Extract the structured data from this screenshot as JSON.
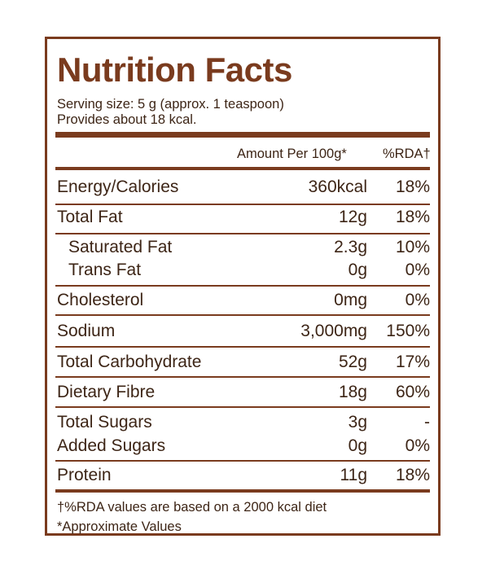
{
  "title": "Nutrition Facts",
  "serving_line_1": "Serving size: 5 g (approx. 1 teaspoon)",
  "serving_line_2": "Provides about 18 kcal.",
  "header": {
    "amount": "Amount Per 100g*",
    "rda": "%RDA†"
  },
  "rows": [
    {
      "name": "Energy/Calories",
      "amount": "360kcal",
      "rda": "18%"
    },
    {
      "name": "Total Fat",
      "amount": "12g",
      "rda": "18%"
    },
    {
      "name": "Saturated Fat",
      "amount": "2.3g",
      "rda": "10%"
    },
    {
      "name": "Trans Fat",
      "amount": "0g",
      "rda": "0%"
    },
    {
      "name": "Cholesterol",
      "amount": "0mg",
      "rda": "0%"
    },
    {
      "name": "Sodium",
      "amount": "3,000mg",
      "rda": "150%"
    },
    {
      "name": "Total Carbohydrate",
      "amount": "52g",
      "rda": "17%"
    },
    {
      "name": "Dietary Fibre",
      "amount": "18g",
      "rda": "60%"
    },
    {
      "name": "Total Sugars",
      "amount": "3g",
      "rda": "-"
    },
    {
      "name": "Added Sugars",
      "amount": "0g",
      "rda": "0%"
    },
    {
      "name": "Protein",
      "amount": "11g",
      "rda": "18%"
    }
  ],
  "footnotes": [
    "†%RDA values are based on a 2000 kcal diet",
    "*Approximate Values"
  ],
  "colors": {
    "accent": "#7a3b1e",
    "text": "#3d2516"
  }
}
